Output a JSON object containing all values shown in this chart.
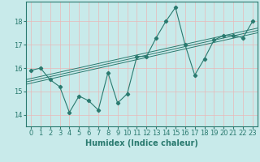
{
  "xlabel": "Humidex (Indice chaleur)",
  "ylabel": "",
  "xlim": [
    -0.5,
    23.5
  ],
  "ylim": [
    13.5,
    18.85
  ],
  "yticks": [
    14,
    15,
    16,
    17,
    18
  ],
  "xticks": [
    0,
    1,
    2,
    3,
    4,
    5,
    6,
    7,
    8,
    9,
    10,
    11,
    12,
    13,
    14,
    15,
    16,
    17,
    18,
    19,
    20,
    21,
    22,
    23
  ],
  "data_x": [
    0,
    1,
    2,
    3,
    4,
    5,
    6,
    7,
    8,
    9,
    10,
    11,
    12,
    13,
    14,
    15,
    16,
    17,
    18,
    19,
    20,
    21,
    22,
    23
  ],
  "data_y": [
    15.9,
    16.0,
    15.5,
    15.2,
    14.1,
    14.8,
    14.6,
    14.2,
    15.8,
    14.5,
    14.9,
    16.5,
    16.5,
    17.3,
    18.0,
    18.6,
    17.0,
    15.7,
    16.4,
    17.2,
    17.4,
    17.4,
    17.3,
    18.0
  ],
  "line_color": "#2a7a6f",
  "bg_color": "#c8eaea",
  "plot_bg_color": "#c8eaea",
  "grid_color": "#e8b8b8",
  "xlabel_bg": "#5a9090",
  "tick_fontsize": 6,
  "xlabel_fontsize": 7,
  "regression_lines": [
    {
      "slope": 0.092,
      "intercept": 15.35
    },
    {
      "slope": 0.092,
      "intercept": 15.45
    },
    {
      "slope": 0.092,
      "intercept": 15.55
    }
  ]
}
